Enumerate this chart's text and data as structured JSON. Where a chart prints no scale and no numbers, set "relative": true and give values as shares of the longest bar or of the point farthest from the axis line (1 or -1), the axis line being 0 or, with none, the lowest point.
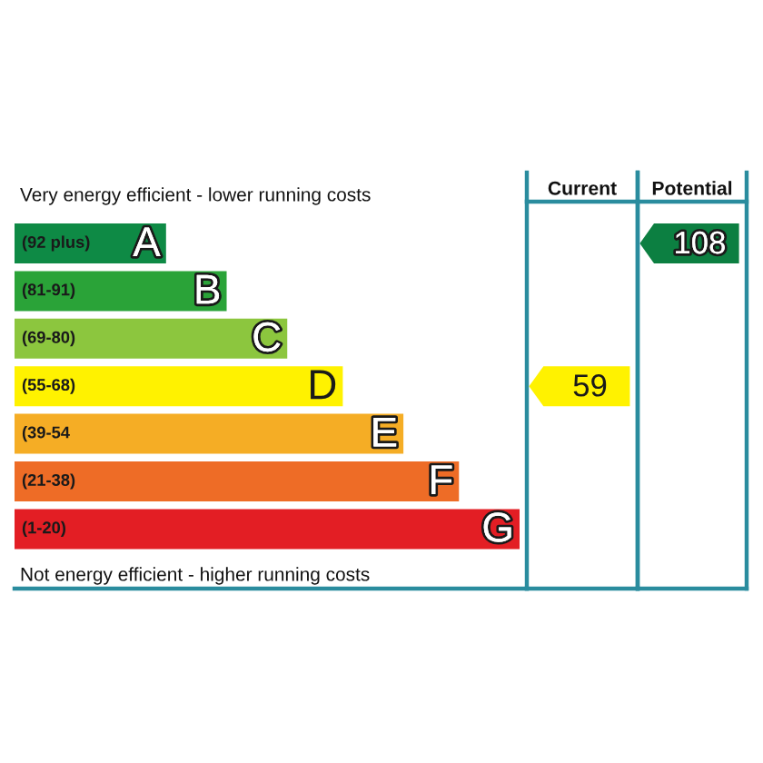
{
  "chart_data": [
    {
      "type": "bar",
      "orientation": "horizontal",
      "relative": true,
      "categories": [
        "A",
        "B",
        "C",
        "D",
        "E",
        "F",
        "G"
      ],
      "values": [
        0.3,
        0.42,
        0.54,
        0.65,
        0.77,
        0.88,
        1
      ],
      "colors": [
        "#0e8a45",
        "#2aa338",
        "#8cc63e",
        "#fff200",
        "#f5ad25",
        "#ee6c26",
        "#e31e24"
      ],
      "annotations": [
        "Very energy efficient - lower running costs",
        "(92 plus)",
        "(81-91)",
        "(69-80)",
        "(55-68)",
        "(39-54",
        "(21-38)",
        "(1-20)",
        "Not energy efficient - higher running costs"
      ]
    },
    {
      "type": "other",
      "title": "Current",
      "color": "#fff200",
      "annotations": [
        "59"
      ]
    },
    {
      "type": "other",
      "title": "Potential",
      "color": "#0c7f41",
      "annotations": [
        "108"
      ]
    }
  ]
}
